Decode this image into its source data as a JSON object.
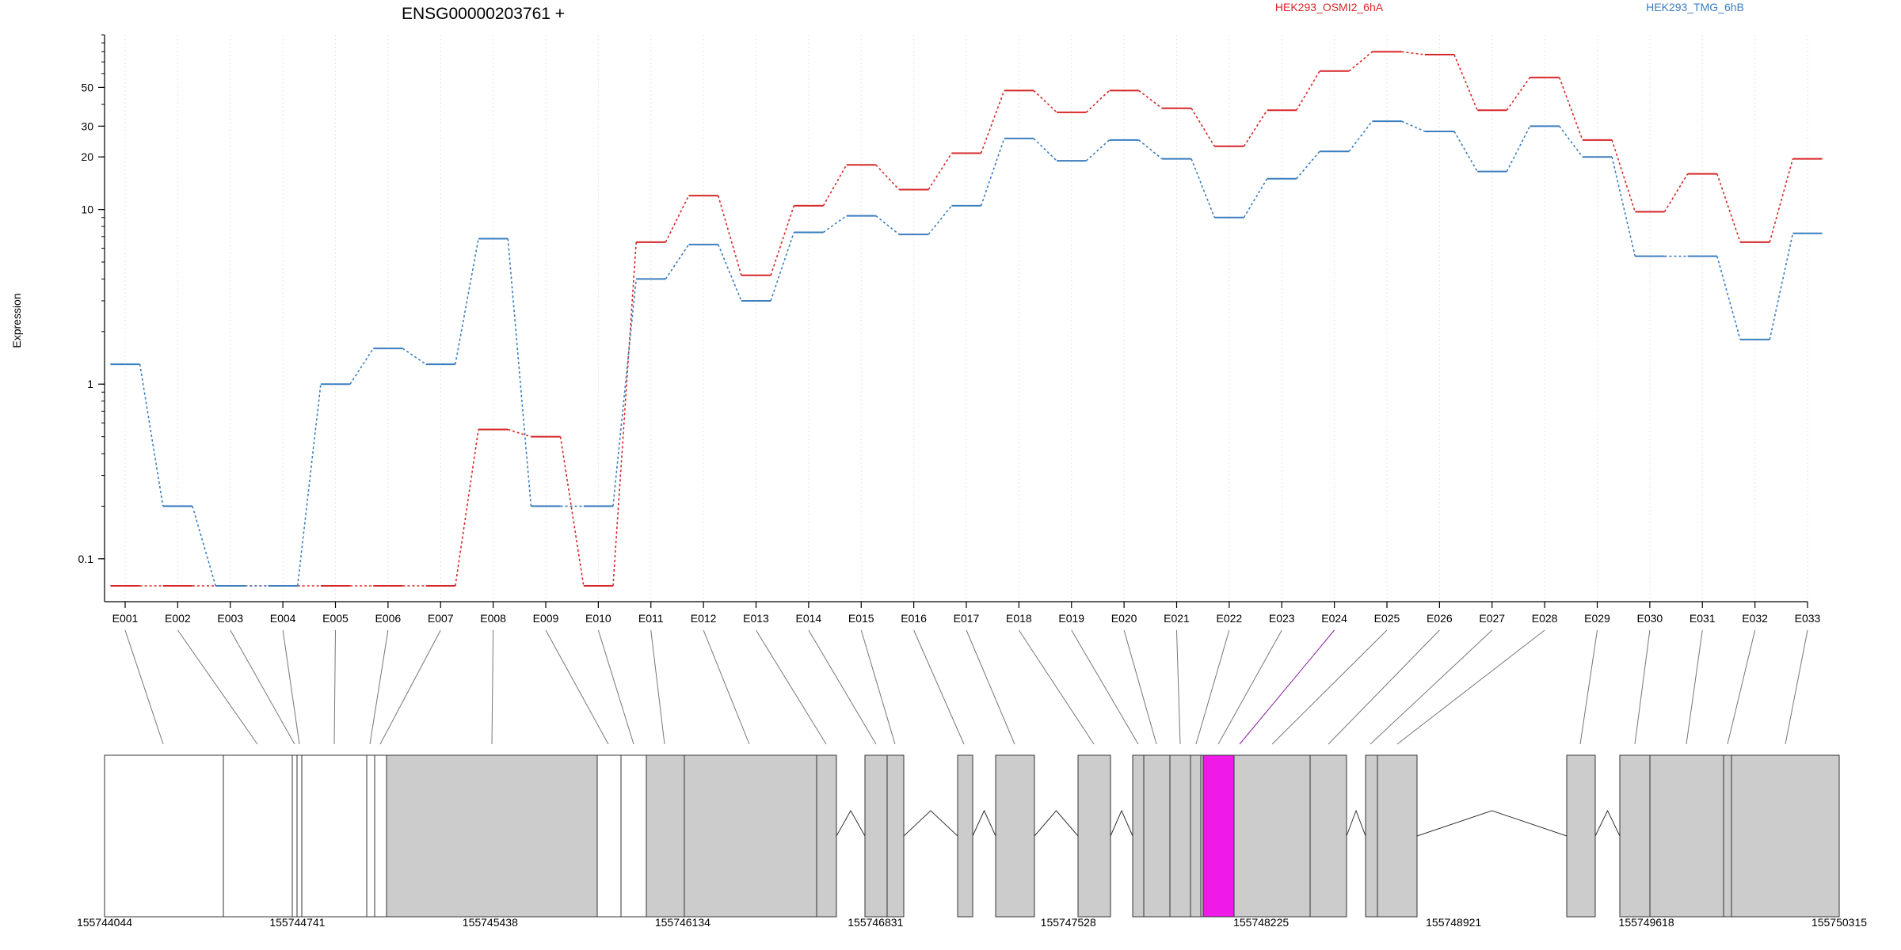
{
  "chart_data": {
    "type": "line",
    "title": "ENSG00000203761 +",
    "ylabel": "Expression",
    "xlabel": "",
    "y_scale": "log",
    "ylim": [
      0.07,
      100
    ],
    "y_ticks": [
      0.1,
      1,
      10,
      20,
      30,
      50
    ],
    "y_tick_labels": [
      "0.1",
      "1",
      "10",
      "20",
      "30",
      "50"
    ],
    "grid": "vertical dotted",
    "legend_placement": "top",
    "categories": [
      "E001",
      "E002",
      "E003",
      "E004",
      "E005",
      "E006",
      "E007",
      "E008",
      "E009",
      "E010",
      "E011",
      "E012",
      "E013",
      "E014",
      "E015",
      "E016",
      "E017",
      "E018",
      "E019",
      "E020",
      "E021",
      "E022",
      "E023",
      "E024",
      "E025",
      "E026",
      "E027",
      "E028",
      "E029",
      "E030",
      "E031",
      "E032",
      "E033"
    ],
    "series": [
      {
        "name": "HEK293_OSMI2_6hA",
        "color": "#d62728",
        "values": [
          0.07,
          0.07,
          0.07,
          0.07,
          0.07,
          0.07,
          0.07,
          0.55,
          0.5,
          0.07,
          6.5,
          12,
          4.2,
          10.5,
          18,
          13,
          21,
          48,
          36,
          48,
          38,
          23,
          37,
          62,
          80,
          77,
          37,
          57,
          25,
          9.7,
          16,
          6.5,
          19.5
        ]
      },
      {
        "name": "HEK293_TMG_6hB",
        "color": "#3a7ebf",
        "values": [
          1.3,
          0.2,
          0.07,
          0.07,
          1,
          1.6,
          1.3,
          6.8,
          0.2,
          0.2,
          4,
          6.3,
          3,
          7.4,
          9.2,
          7.2,
          10.5,
          25.5,
          19,
          25,
          19.5,
          9,
          15,
          21.5,
          32,
          28,
          16.5,
          30,
          20,
          5.4,
          5.4,
          1.8,
          7.3
        ]
      }
    ],
    "gene_model": {
      "coordinate_labels": [
        "155744044",
        "155744741",
        "155745438",
        "155746134",
        "155746831",
        "155747528",
        "155748225",
        "155748921",
        "155749618",
        "155750315"
      ],
      "coordinate_start": 155744044,
      "coordinate_end": 155750315,
      "highlight_color": "#f01ae8",
      "exon_fill": "#cccccc"
    }
  }
}
